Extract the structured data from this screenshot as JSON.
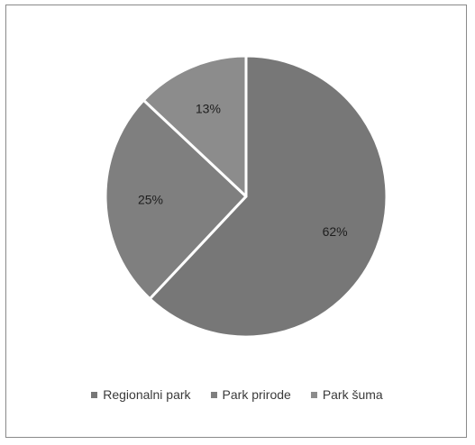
{
  "chart_data": {
    "type": "pie",
    "title": "",
    "categories": [
      "Regionalni park",
      "Park prirode",
      "Park šuma"
    ],
    "values": [
      62,
      25,
      13
    ],
    "labels": [
      "62%",
      "25%",
      "13%"
    ],
    "colors": [
      "#777777",
      "#7f7f7f",
      "#8c8c8c"
    ],
    "legend_position": "bottom",
    "slice_border_color": "#ffffff"
  }
}
